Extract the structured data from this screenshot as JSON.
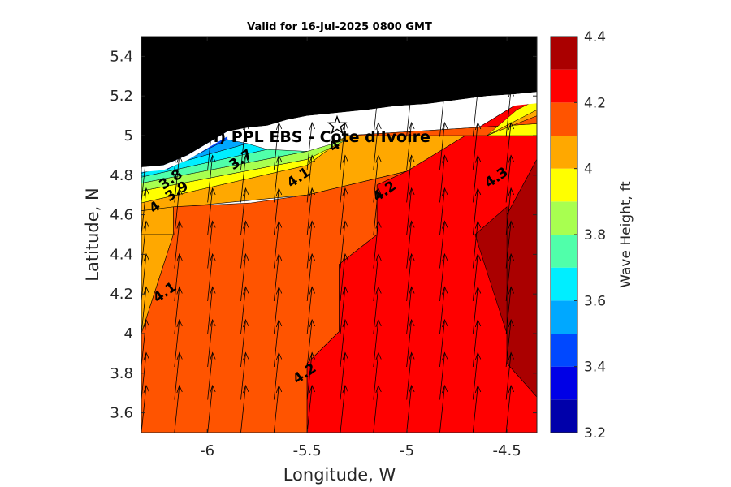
{
  "chart_data": {
    "type": "heatmap",
    "title": "Valid for 16-Jul-2025 0800 GMT",
    "xlabel": "Longitude, W",
    "ylabel": "Latitude, N",
    "xlim": [
      -6.33,
      -4.35
    ],
    "ylim": [
      3.5,
      5.5
    ],
    "x_ticks": [
      -6,
      -5.5,
      -5,
      -4.5
    ],
    "x_tick_labels": [
      "-6",
      "-5.5",
      "-5",
      "-4.5"
    ],
    "y_ticks": [
      3.6,
      3.8,
      4,
      4.2,
      4.4,
      4.6,
      4.8,
      5,
      5.2,
      5.4
    ],
    "y_tick_labels": [
      "3.6",
      "3.8",
      "4",
      "4.2",
      "4.4",
      "4.6",
      "4.8",
      "5",
      "5.2",
      "5.4"
    ],
    "colorbar": {
      "label": "Wave Height, ft",
      "range": [
        3.2,
        4.4
      ],
      "ticks": [
        3.2,
        3.4,
        3.6,
        3.8,
        4,
        4.2,
        4.4
      ],
      "tick_labels": [
        "3.2",
        "3.4",
        "3.6",
        "3.8",
        "4",
        "4.2",
        "4.4"
      ],
      "bands": [
        {
          "from": 3.2,
          "to": 3.3,
          "color": "#0000aa"
        },
        {
          "from": 3.3,
          "to": 3.4,
          "color": "#0000e6"
        },
        {
          "from": 3.4,
          "to": 3.5,
          "color": "#0048ff"
        },
        {
          "from": 3.5,
          "to": 3.6,
          "color": "#00a8ff"
        },
        {
          "from": 3.6,
          "to": 3.7,
          "color": "#00eeff"
        },
        {
          "from": 3.7,
          "to": 3.8,
          "color": "#50ffaa"
        },
        {
          "from": 3.8,
          "to": 3.9,
          "color": "#a8ff50"
        },
        {
          "from": 3.9,
          "to": 4.0,
          "color": "#ffff00"
        },
        {
          "from": 4.0,
          "to": 4.1,
          "color": "#ffa800"
        },
        {
          "from": 4.1,
          "to": 4.2,
          "color": "#ff5400"
        },
        {
          "from": 4.2,
          "to": 4.3,
          "color": "#ff0000"
        },
        {
          "from": 4.3,
          "to": 4.4,
          "color": "#aa0000"
        }
      ]
    },
    "regions": [
      {
        "band": 4.05,
        "polygon": [
          [
            -6.33,
            4.62
          ],
          [
            -5.5,
            4.7
          ],
          [
            -5.0,
            4.82
          ],
          [
            -4.35,
            5.22
          ],
          [
            -4.35,
            5.0
          ],
          [
            -5.3,
            5.0
          ],
          [
            -5.5,
            4.85
          ],
          [
            -6.33,
            4.66
          ]
        ]
      },
      {
        "band": 4.05,
        "polygon": [
          [
            -6.33,
            4.62
          ],
          [
            -6.17,
            4.64
          ],
          [
            -6.17,
            4.5
          ],
          [
            -6.33,
            4.5
          ]
        ]
      },
      {
        "band": 4.05,
        "polygon": [
          [
            -6.33,
            4.5
          ],
          [
            -6.17,
            4.5
          ],
          [
            -6.33,
            4.0
          ]
        ]
      },
      {
        "band": 4.15,
        "polygon": [
          [
            -6.33,
            3.5
          ],
          [
            -5.5,
            3.5
          ],
          [
            -5.5,
            3.85
          ],
          [
            -5.34,
            4.01
          ],
          [
            -5.34,
            4.35
          ],
          [
            -5.15,
            4.5
          ],
          [
            -5.15,
            4.75
          ],
          [
            -5.0,
            4.82
          ],
          [
            -5.5,
            4.7
          ],
          [
            -5.78,
            4.66
          ],
          [
            -6.17,
            4.64
          ],
          [
            -6.17,
            4.5
          ],
          [
            -6.33,
            4.0
          ]
        ]
      },
      {
        "band": 4.25,
        "polygon": [
          [
            -5.5,
            3.5
          ],
          [
            -4.35,
            3.5
          ],
          [
            -4.35,
            3.68
          ],
          [
            -4.5,
            3.85
          ],
          [
            -4.5,
            4.6
          ],
          [
            -4.35,
            4.88
          ],
          [
            -4.35,
            5.22
          ],
          [
            -5.0,
            4.82
          ],
          [
            -5.15,
            4.75
          ],
          [
            -5.15,
            4.5
          ],
          [
            -5.34,
            4.35
          ],
          [
            -5.34,
            4.01
          ],
          [
            -5.5,
            3.85
          ]
        ]
      },
      {
        "band": 4.35,
        "polygon": [
          [
            -4.5,
            3.85
          ],
          [
            -4.35,
            3.68
          ],
          [
            -4.35,
            4.88
          ],
          [
            -4.5,
            4.6
          ]
        ]
      },
      {
        "band": 4.35,
        "polygon": [
          [
            -4.66,
            4.5
          ],
          [
            -4.5,
            4.64
          ],
          [
            -4.5,
            4.0
          ]
        ]
      }
    ],
    "contour_labels": [
      {
        "text": "3.8",
        "x": -6.17,
        "y": 4.76
      },
      {
        "text": "3.9",
        "x": -6.14,
        "y": 4.7
      },
      {
        "text": "4",
        "x": -6.25,
        "y": 4.62
      },
      {
        "text": "4.1",
        "x": -6.2,
        "y": 4.19
      },
      {
        "text": "4.1",
        "x": -5.53,
        "y": 4.77
      },
      {
        "text": "4.2",
        "x": -5.1,
        "y": 4.7
      },
      {
        "text": "4.3",
        "x": -4.54,
        "y": 4.77
      },
      {
        "text": "4.2",
        "x": -5.5,
        "y": 3.78
      },
      {
        "text": "3.7",
        "x": -5.82,
        "y": 4.86
      },
      {
        "text": "4",
        "x": -5.35,
        "y": 4.93
      }
    ],
    "station": {
      "label": "(ONHYM) PPL EBS  - Cote d'Ivoire",
      "x": -5.35,
      "y": 5.05
    }
  }
}
